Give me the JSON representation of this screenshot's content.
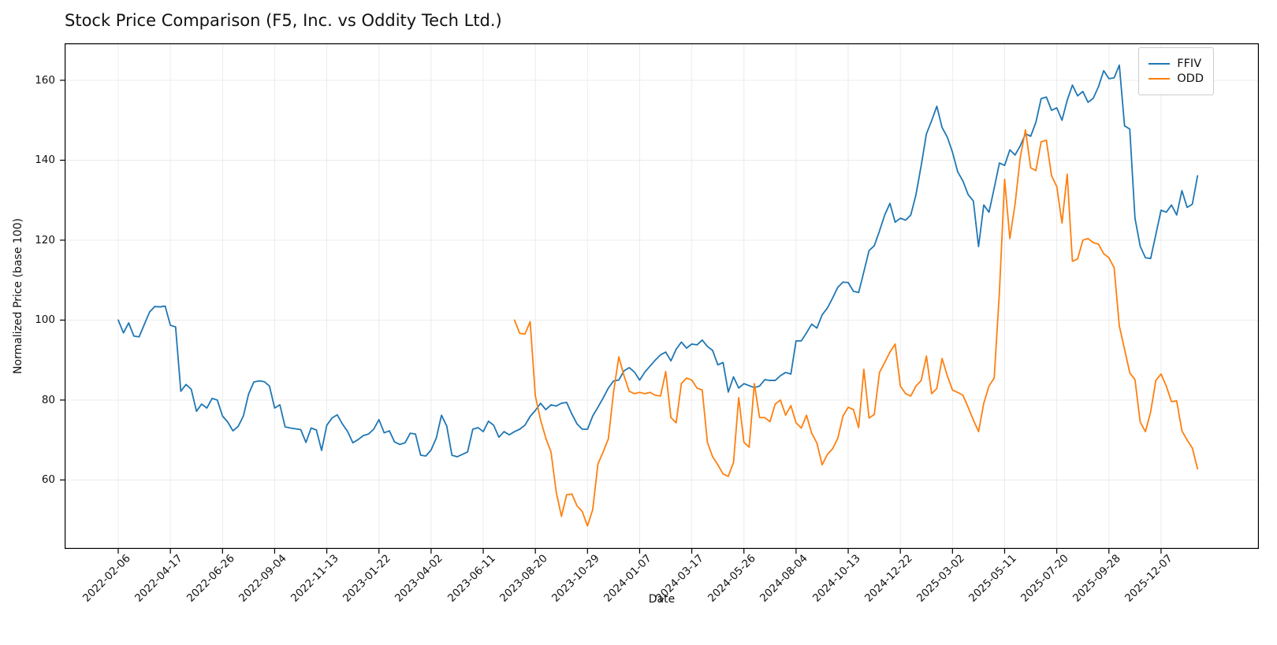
{
  "figure": {
    "title": "Stock Price Comparison (F5, Inc. vs Oddity Tech Ltd.)"
  },
  "chart_data": {
    "type": "line",
    "title": "Stock Price Comparison (F5, Inc. vs Oddity Tech Ltd.)",
    "xlabel": "Date",
    "ylabel": "Normalized Price (base 100)",
    "x_unit": "weeks since 2022-02-06",
    "grid": true,
    "legend_position": "upper right",
    "xlim": [
      -10.28,
      218.76
    ],
    "ylim": [
      42.75,
      169.25
    ],
    "y_ticks": [
      60,
      80,
      100,
      120,
      140,
      160
    ],
    "x_tick_weeks": [
      0,
      10,
      20,
      30,
      40,
      50,
      60,
      70,
      80,
      90,
      100,
      110,
      120,
      130,
      140,
      150,
      160,
      170,
      180,
      190,
      200
    ],
    "x_tick_labels": [
      "2022-02-06",
      "2022-04-17",
      "2022-06-26",
      "2022-09-04",
      "2022-11-13",
      "2023-01-22",
      "2023-04-02",
      "2023-06-11",
      "2023-08-20",
      "2023-10-29",
      "2024-01-07",
      "2024-03-17",
      "2024-05-26",
      "2024-08-04",
      "2024-10-13",
      "2024-12-22",
      "2025-03-02",
      "2025-05-11",
      "2025-07-20",
      "2025-09-28",
      "2025-12-07"
    ],
    "series": [
      {
        "name": "FFIV",
        "color": "#1f77b4",
        "start_week": 0,
        "values": [
          100.0,
          96.8,
          99.3,
          96.0,
          95.8,
          98.9,
          102.0,
          103.4,
          103.3,
          103.5,
          98.7,
          98.3,
          82.2,
          83.9,
          82.7,
          77.2,
          79.0,
          78.0,
          80.4,
          80.0,
          76.0,
          74.5,
          72.3,
          73.4,
          76.0,
          81.5,
          84.5,
          84.8,
          84.6,
          83.5,
          78.0,
          78.8,
          73.3,
          73.0,
          72.8,
          72.6,
          69.4,
          73.0,
          72.5,
          67.4,
          73.7,
          75.5,
          76.3,
          74.0,
          72.1,
          69.3,
          70.1,
          71.1,
          71.5,
          72.7,
          75.1,
          71.8,
          72.3,
          69.5,
          68.9,
          69.3,
          71.7,
          71.5,
          66.2,
          66.0,
          67.5,
          70.5,
          76.2,
          73.5,
          66.2,
          65.8,
          66.4,
          67.0,
          72.7,
          73.1,
          72.1,
          74.7,
          73.7,
          70.7,
          72.1,
          71.3,
          72.1,
          72.7,
          73.7,
          75.9,
          77.4,
          79.2,
          77.6,
          78.8,
          78.5,
          79.2,
          79.4,
          76.5,
          74.0,
          72.7,
          72.7,
          76.0,
          78.2,
          80.5,
          83.0,
          84.8,
          85.0,
          87.3,
          88.1,
          87.0,
          85.0,
          87.0,
          88.5,
          90.0,
          91.3,
          92.0,
          89.8,
          92.7,
          94.5,
          93.0,
          94.0,
          93.8,
          95.0,
          93.4,
          92.4,
          88.8,
          89.4,
          82.0,
          85.8,
          83.0,
          84.1,
          83.6,
          83.1,
          83.5,
          85.1,
          84.9,
          84.9,
          86.1,
          86.9,
          86.5,
          94.8,
          94.8,
          96.8,
          99.0,
          98.0,
          101.3,
          103.0,
          105.5,
          108.2,
          109.5,
          109.4,
          107.2,
          106.9,
          112.1,
          117.4,
          118.6,
          122.3,
          126.3,
          129.2,
          124.5,
          125.5,
          125.0,
          126.3,
          131.4,
          138.7,
          146.6,
          149.9,
          153.5,
          148.2,
          145.8,
          142.0,
          137.1,
          134.8,
          131.4,
          129.8,
          118.4,
          128.8,
          127.0,
          133.0,
          139.3,
          138.7,
          142.6,
          141.3,
          143.6,
          146.6,
          146.0,
          149.5,
          155.4,
          155.8,
          152.5,
          153.1,
          150.0,
          155.0,
          158.8,
          156.1,
          157.2,
          154.5,
          155.5,
          158.4,
          162.4,
          160.4,
          160.6,
          163.8,
          148.6,
          147.8,
          125.5,
          118.5,
          115.6,
          115.4,
          121.4,
          127.5,
          127.0,
          128.8,
          126.3,
          132.4,
          128.2,
          129.0,
          136.1
        ]
      },
      {
        "name": "ODD",
        "color": "#ff7f0e",
        "start_week": 76,
        "values": [
          100.0,
          96.7,
          96.5,
          99.6,
          81.0,
          75.0,
          70.5,
          67.0,
          57.0,
          50.9,
          56.3,
          56.5,
          53.5,
          52.1,
          48.5,
          52.6,
          64.0,
          67.0,
          70.3,
          82.0,
          90.8,
          86.1,
          82.2,
          81.6,
          81.9,
          81.6,
          81.9,
          81.2,
          81.0,
          87.1,
          75.6,
          74.3,
          84.1,
          85.5,
          85.0,
          83.0,
          82.5,
          69.4,
          65.8,
          63.8,
          61.5,
          60.9,
          64.4,
          80.6,
          69.4,
          68.2,
          84.1,
          75.6,
          75.6,
          74.6,
          79.0,
          80.0,
          76.2,
          78.6,
          74.3,
          73.0,
          76.2,
          71.7,
          69.2,
          63.8,
          66.4,
          67.8,
          70.4,
          76.0,
          78.2,
          77.6,
          73.1,
          87.7,
          75.5,
          76.4,
          86.9,
          89.4,
          92.0,
          94.0,
          83.5,
          81.6,
          81.0,
          83.5,
          84.9,
          91.0,
          81.6,
          82.9,
          90.4,
          86.1,
          82.5,
          81.9,
          81.2,
          78.2,
          75.0,
          72.1,
          79.2,
          83.5,
          85.5,
          107.0,
          135.2,
          120.4,
          129.0,
          140.7,
          147.6,
          138.1,
          137.4,
          144.6,
          145.0,
          136.1,
          133.4,
          124.3,
          136.5,
          114.7,
          115.3,
          120.0,
          120.4,
          119.4,
          119.0,
          116.6,
          115.6,
          113.1,
          98.5,
          92.7,
          86.8,
          85.1,
          74.5,
          72.1,
          77.0,
          84.9,
          86.5,
          83.5,
          79.6,
          79.8,
          72.3,
          70.0,
          68.0,
          62.8
        ]
      }
    ]
  }
}
